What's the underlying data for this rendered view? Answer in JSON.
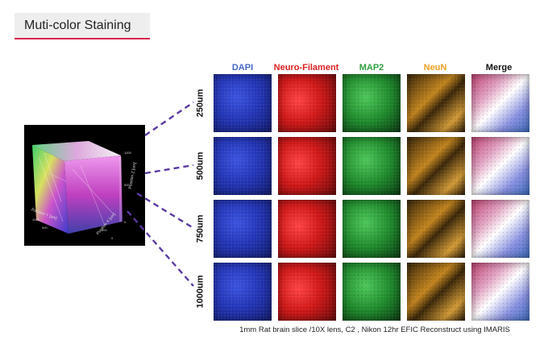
{
  "section_title": "Muti-color Staining",
  "channels": [
    {
      "label": "DAPI",
      "color": "#4466cc"
    },
    {
      "label": "Neuro-Filament",
      "color": "#e02020"
    },
    {
      "label": "MAP2",
      "color": "#2e9e3e"
    },
    {
      "label": "NeuN",
      "color": "#f0a020"
    },
    {
      "label": "Merge",
      "color": "#111111"
    }
  ],
  "depths": [
    "250um",
    "500um",
    "750um",
    "1000um"
  ],
  "volume_axes": {
    "position_y": "Position Y [um]",
    "position_x": "Position X [um]",
    "position_z": "Position Z [um]",
    "ticks": [
      "500",
      "1000",
      "500",
      "0",
      "0",
      "500",
      "1000"
    ]
  },
  "caption": "1mm Rat brain slice /10X lens, C2 , Nikon 12hr EFIC Reconstruct using IMARIS",
  "colors": {
    "title_underline": "#d9234f",
    "connector": "#5b3aa0"
  }
}
